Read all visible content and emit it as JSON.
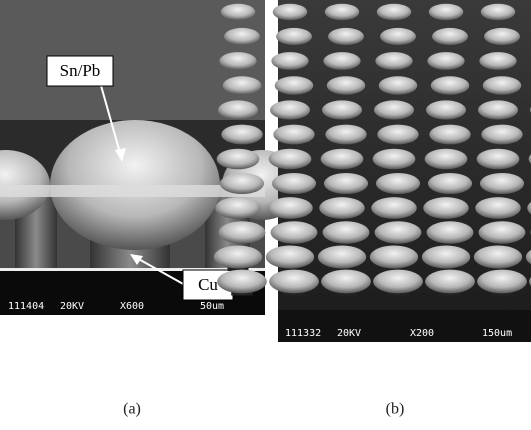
{
  "panels": [
    {
      "caption": "(a)",
      "labels": [
        "Sn/Pb",
        "Cu"
      ],
      "info": {
        "id": "111404",
        "voltage": "20KV",
        "magnification": "X600",
        "scale": "50um"
      }
    },
    {
      "caption": "(b)",
      "info": {
        "id": "111332",
        "voltage": "20KV",
        "magnification": "X200",
        "scale": "150um"
      }
    }
  ]
}
